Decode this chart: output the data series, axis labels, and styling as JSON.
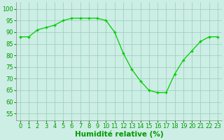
{
  "x": [
    0,
    1,
    2,
    3,
    4,
    5,
    6,
    7,
    8,
    9,
    10,
    11,
    12,
    13,
    14,
    15,
    16,
    17,
    18,
    19,
    20,
    21,
    22,
    23
  ],
  "y": [
    88,
    88,
    91,
    92,
    93,
    95,
    96,
    96,
    96,
    96,
    95,
    90,
    81,
    74,
    69,
    65,
    64,
    64,
    72,
    78,
    82,
    86,
    88,
    88
  ],
  "line_color": "#00cc00",
  "marker": "+",
  "bg_color": "#cceee4",
  "grid_color": "#99ccbb",
  "xlabel": "Humidité relative (%)",
  "xlabel_color": "#009900",
  "xlabel_fontsize": 7.5,
  "tick_color": "#009900",
  "tick_fontsize": 6,
  "ytick_values": [
    55,
    60,
    65,
    70,
    75,
    80,
    85,
    90,
    95,
    100
  ],
  "xtick_values": [
    0,
    1,
    2,
    3,
    4,
    5,
    6,
    7,
    8,
    9,
    10,
    11,
    12,
    13,
    14,
    15,
    16,
    17,
    18,
    19,
    20,
    21,
    22,
    23
  ],
  "ylim": [
    52,
    103
  ],
  "xlim": [
    -0.5,
    23.5
  ]
}
